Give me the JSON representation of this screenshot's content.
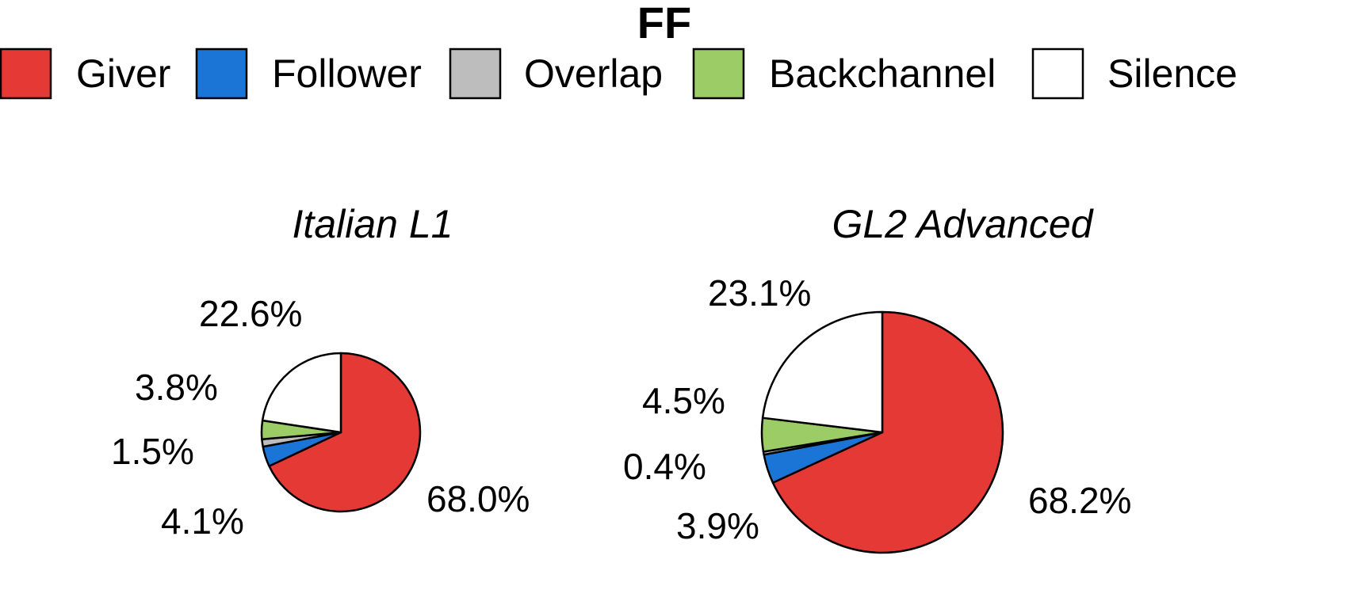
{
  "chart_data": {
    "type": "pie",
    "title": "FF",
    "legend": {
      "placement": "top",
      "entries": [
        {
          "label": "Giver",
          "color": "#e53935"
        },
        {
          "label": "Follower",
          "color": "#1a75d6"
        },
        {
          "label": "Overlap",
          "color": "#bdbdbd"
        },
        {
          "label": "Backchannel",
          "color": "#9ccc65"
        },
        {
          "label": "Silence",
          "color": "#ffffff"
        }
      ]
    },
    "pies": [
      {
        "title": "Italian L1",
        "slices": [
          {
            "category": "Giver",
            "value": 68.0,
            "label": "68.0%"
          },
          {
            "category": "Follower",
            "value": 4.1,
            "label": "4.1%"
          },
          {
            "category": "Overlap",
            "value": 1.5,
            "label": "1.5%"
          },
          {
            "category": "Backchannel",
            "value": 3.8,
            "label": "3.8%"
          },
          {
            "category": "Silence",
            "value": 22.6,
            "label": "22.6%"
          }
        ]
      },
      {
        "title": "GL2 Advanced",
        "slices": [
          {
            "category": "Giver",
            "value": 68.2,
            "label": "68.2%"
          },
          {
            "category": "Follower",
            "value": 3.9,
            "label": "3.9%"
          },
          {
            "category": "Overlap",
            "value": 0.4,
            "label": "0.4%"
          },
          {
            "category": "Backchannel",
            "value": 4.5,
            "label": "4.5%"
          },
          {
            "category": "Silence",
            "value": 23.1,
            "label": "23.1%"
          }
        ]
      }
    ]
  }
}
